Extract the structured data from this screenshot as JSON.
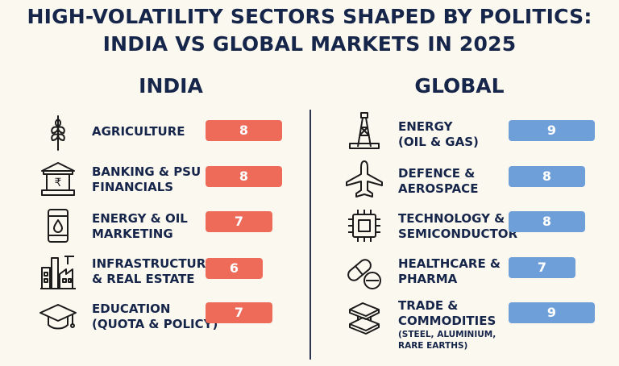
{
  "title": {
    "line1": "HIGH-VOLATILITY SECTORS SHAPED BY POLITICS:",
    "line2": "INDIA VS GLOBAL MARKETS IN 2025"
  },
  "colors": {
    "india_bar": "#ee6b5a",
    "global_bar": "#6f9fd9",
    "text": "#16254a",
    "background": "#fbf8ef"
  },
  "chart_data": {
    "type": "bar",
    "title": "HIGH-VOLATILITY SECTORS SHAPED BY POLITICS: INDIA VS GLOBAL MARKETS IN 2025",
    "scale_max": 9,
    "groups": [
      {
        "name": "INDIA",
        "items": [
          {
            "line1": "AGRICULTURE",
            "line2": "",
            "note": "",
            "value": 8,
            "icon": "wheat-icon"
          },
          {
            "line1": "BANKING & PSU",
            "line2": "FINANCIALS",
            "note": "",
            "value": 8,
            "icon": "bank-rupee-icon"
          },
          {
            "line1": "ENERGY & OIL",
            "line2": "MARKETING",
            "note": "",
            "value": 7,
            "icon": "oil-barrel-icon"
          },
          {
            "line1": "INFRASTRUCTURE",
            "line2": "& REAL ESTATE",
            "note": "",
            "value": 6,
            "icon": "factory-buildings-icon"
          },
          {
            "line1": "EDUCATION",
            "line2": "(QUOTA & POLICY)",
            "note": "",
            "value": 7,
            "icon": "graduation-cap-icon"
          }
        ]
      },
      {
        "name": "GLOBAL",
        "items": [
          {
            "line1": "ENERGY",
            "line2": "(OIL & GAS)",
            "note": "",
            "value": 9,
            "icon": "oil-rig-icon"
          },
          {
            "line1": "DEFENCE &",
            "line2": "AEROSPACE",
            "note": "",
            "value": 8,
            "icon": "airplane-icon"
          },
          {
            "line1": "TECHNOLOGY &",
            "line2": "SEMICONDUCTOR",
            "note": "",
            "value": 8,
            "icon": "microchip-icon"
          },
          {
            "line1": "HEALTHCARE &",
            "line2": "PHARMA",
            "note": "",
            "value": 7,
            "icon": "pills-icon"
          },
          {
            "line1": "TRADE &",
            "line2": "COMMODITIES",
            "note": "(STEEL, ALUMINIUM, RARE EARTHS)",
            "value": 9,
            "icon": "steel-beam-icon"
          }
        ]
      }
    ]
  }
}
